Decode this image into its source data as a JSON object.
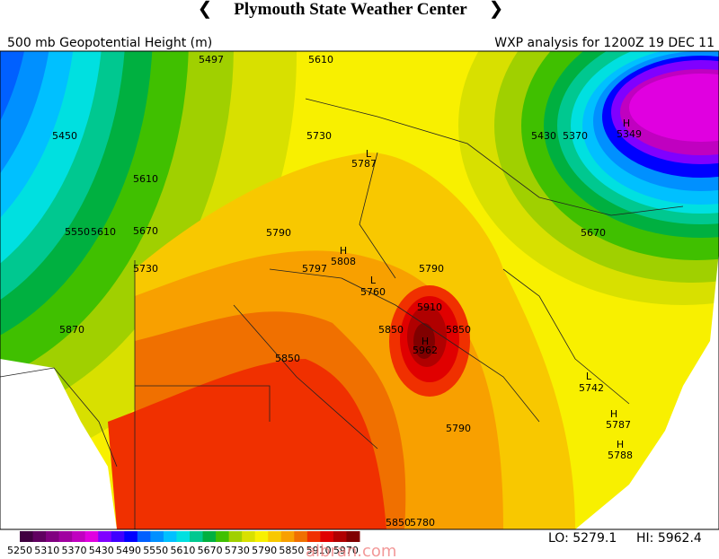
{
  "header": {
    "title": "Plymouth State Weather Center"
  },
  "map": {
    "subtitle_left": "500 mb Geopotential Height (m)",
    "subtitle_right": "WXP analysis for 1200Z 19 DEC 11",
    "contour_labels": [
      "5497",
      "5610",
      "5450",
      "5610",
      "5550",
      "5610",
      "5670",
      "5730",
      "5730",
      "5787",
      "5790",
      "5797",
      "5808",
      "5760",
      "5790",
      "5910",
      "5850",
      "5850",
      "5962",
      "5850",
      "5870",
      "5430",
      "5370",
      "5349",
      "5670",
      "5742",
      "5787",
      "5788",
      "5790",
      "5850",
      "5780",
      "H",
      "L",
      "H",
      "L",
      "H",
      "L",
      "H",
      "H"
    ]
  },
  "colorbar": {
    "colors": [
      "#400040",
      "#600060",
      "#800080",
      "#a000a0",
      "#c000c0",
      "#e000e0",
      "#8000ff",
      "#4000ff",
      "#0000ff",
      "#0060ff",
      "#0090ff",
      "#00c0ff",
      "#00e0e0",
      "#00c890",
      "#00b040",
      "#40c000",
      "#a0d000",
      "#d8e000",
      "#f8f000",
      "#f8c800",
      "#f8a000",
      "#f07000",
      "#f03000",
      "#e00000",
      "#b00000",
      "#800000"
    ],
    "labels": [
      "5250",
      "5310",
      "5370",
      "5430",
      "5490",
      "5550",
      "5610",
      "5670",
      "5730",
      "5790",
      "5850",
      "5910",
      "5970"
    ]
  },
  "footer": {
    "low": "LO: 5279.1",
    "high": "HI: 5962.4",
    "watermark": "albran.com"
  }
}
